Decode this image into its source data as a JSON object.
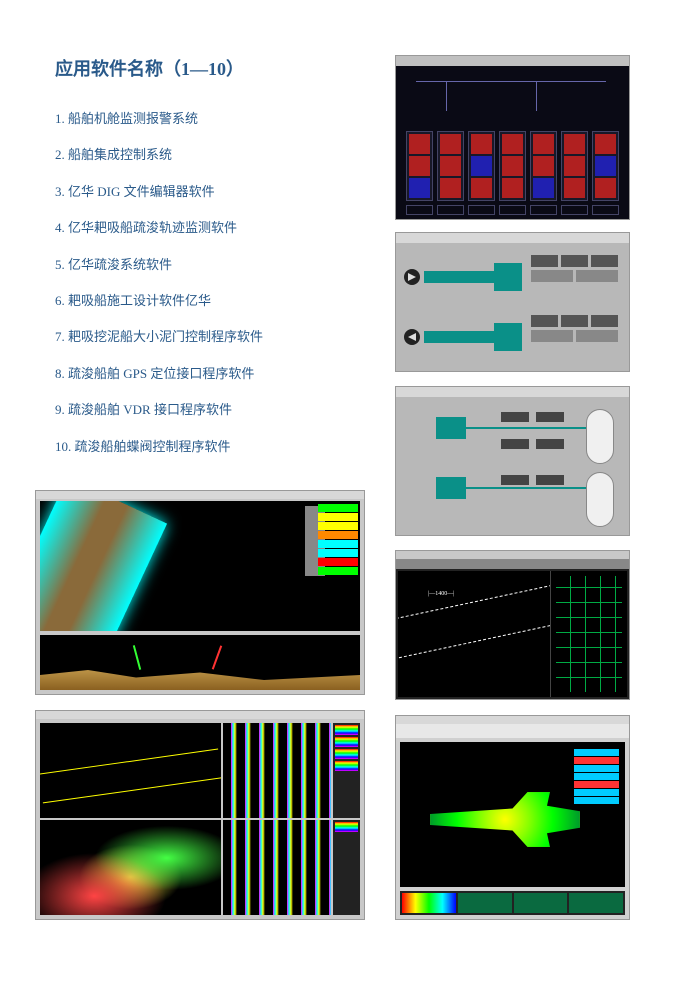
{
  "title": "应用软件名称（1—10）",
  "items": [
    "1. 船舶机舱监测报警系统",
    "2. 船舶集成控制系统",
    "3. 亿华 DIG 文件编辑器软件",
    "4. 亿华耙吸船疏浚轨迹监测软件",
    "5. 亿华疏浚系统软件",
    "6. 耙吸船施工设计软件亿华",
    "7. 耙吸挖泥船大小泥门控制程序软件",
    "8. 疏浚船舶 GPS 定位接口程序软件",
    "9. 疏浚船舶 VDR 接口程序软件",
    "10. 疏浚船舶蝶阀控制程序软件"
  ],
  "colors": {
    "text": "#2a5a8a",
    "teal": "#0a9088",
    "cyan": "#00ffff"
  }
}
